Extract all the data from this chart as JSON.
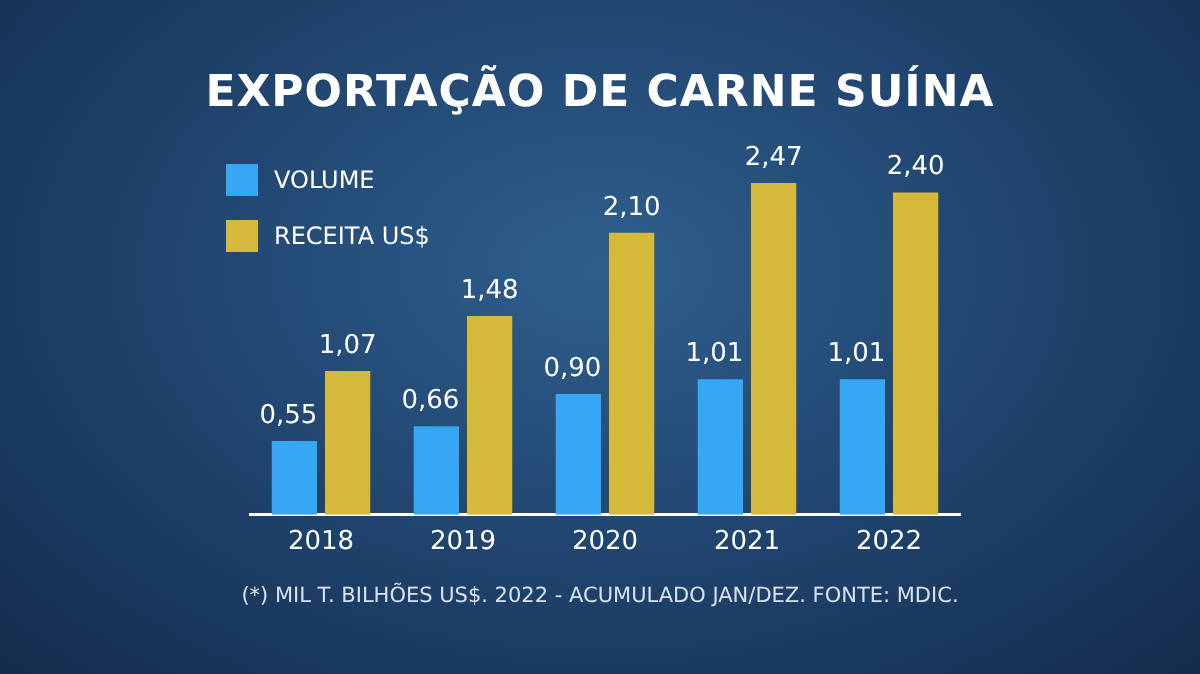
{
  "chart_data": {
    "type": "bar",
    "title": "EXPORTAÇÃO DE CARNE SUÍNA",
    "categories": [
      "2018",
      "2019",
      "2020",
      "2021",
      "2022"
    ],
    "series": [
      {
        "name": "VOLUME",
        "color": "#35a7f5",
        "values": [
          0.55,
          0.66,
          0.9,
          1.01,
          1.01
        ],
        "value_labels": [
          "0,55",
          "0,66",
          "0,90",
          "1,01",
          "1,01"
        ]
      },
      {
        "name": "RECEITA US$",
        "color": "#d4b93a",
        "values": [
          1.07,
          1.48,
          2.1,
          2.47,
          2.4
        ],
        "value_labels": [
          "1,07",
          "1,48",
          "2,10",
          "2,47",
          "2,40"
        ]
      }
    ],
    "legend": "top left",
    "annotations": [
      "(*) MIL T. BILHÕES US$. 2022 - ACUMULADO JAN/DEZ. FONTE: MDIC."
    ]
  }
}
